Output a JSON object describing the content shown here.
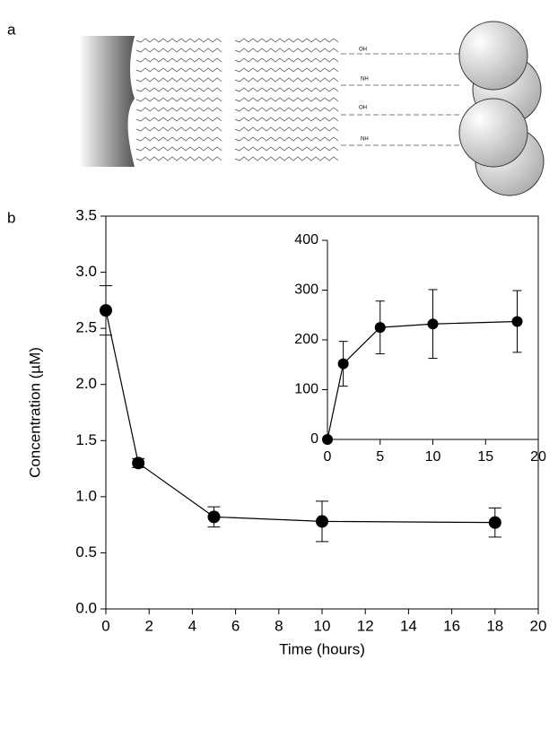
{
  "panel_labels": [
    "a",
    "b"
  ],
  "structure_labels": [
    "OH",
    "NH",
    "OH",
    "NH"
  ],
  "chart_data": [
    {
      "type": "line",
      "ylabel": "Concentration (µM)",
      "xlabel": "Time (hours)",
      "x": [
        0,
        1.5,
        5,
        10,
        18
      ],
      "series": [
        {
          "color": "#000000",
          "values": [
            2.66,
            1.3,
            0.82,
            0.78,
            0.77
          ],
          "errors": [
            0.22,
            0.04,
            0.09,
            0.18,
            0.13
          ]
        }
      ],
      "xlim": [
        0,
        20
      ],
      "xticks": [
        0,
        2,
        4,
        6,
        8,
        10,
        12,
        14,
        16,
        18,
        20
      ],
      "ylim": [
        0,
        3.5
      ],
      "yticks": [
        {
          "value": 0,
          "label": "0.0"
        },
        0.5,
        {
          "value": 1,
          "label": "1.0"
        },
        1.5,
        {
          "value": 2,
          "label": "2.0"
        },
        2.5,
        {
          "value": 3,
          "label": "3.0"
        },
        3.5
      ]
    },
    {
      "type": "line",
      "x": [
        0,
        1.5,
        5,
        10,
        18
      ],
      "series": [
        {
          "color": "#000000",
          "values": [
            0,
            152,
            225,
            232,
            237
          ],
          "errors": [
            0,
            45,
            53,
            69,
            62
          ]
        }
      ],
      "xlim": [
        0,
        20
      ],
      "xticks": [
        0,
        5,
        10,
        15,
        20
      ],
      "ylim": [
        0,
        400
      ],
      "yticks": [
        0,
        100,
        200,
        300,
        400
      ]
    }
  ]
}
